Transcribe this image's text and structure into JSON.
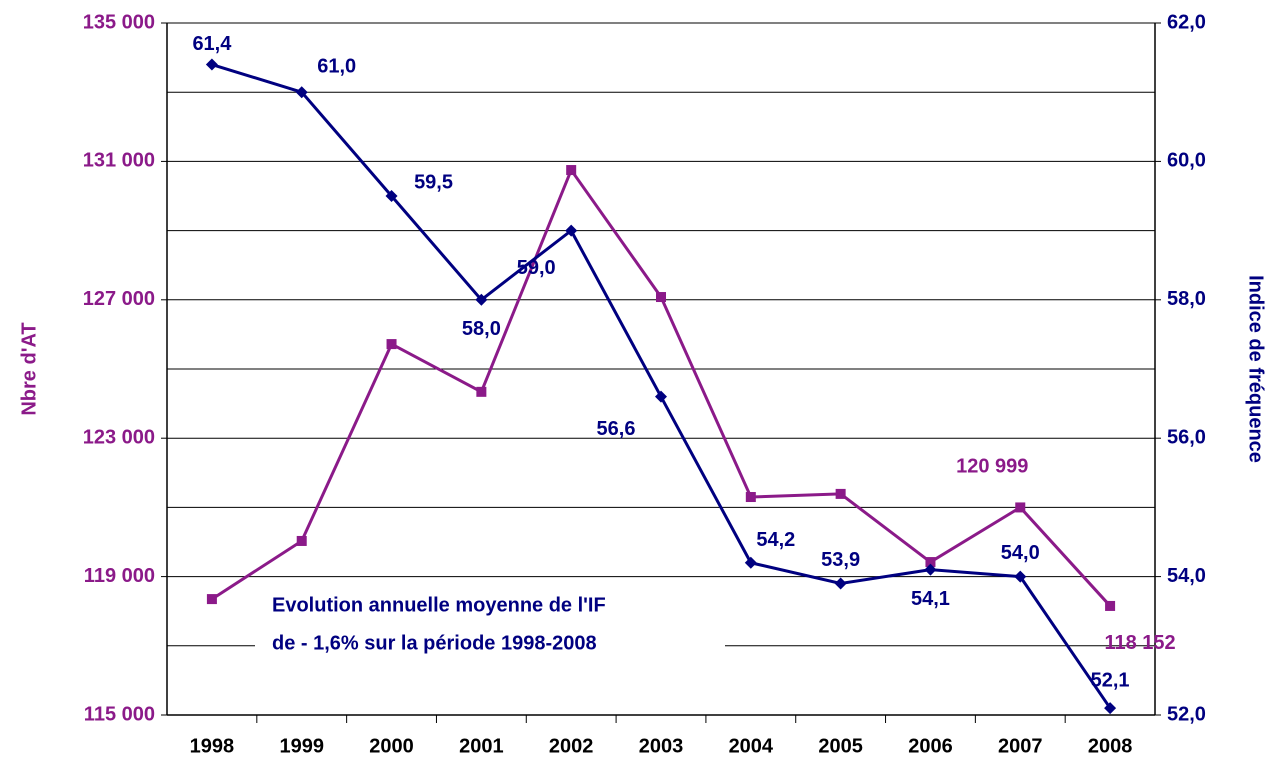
{
  "chart_data": {
    "type": "line",
    "y_label": "Nbre d'AT",
    "y2_label": "Indice de fréquence",
    "annotation": [
      "Evolution annuelle moyenne de l'IF",
      "de - 1,6% sur la période 1998-2008"
    ],
    "categories": [
      "1998",
      "1999",
      "2000",
      "2001",
      "2002",
      "2003",
      "2004",
      "2005",
      "2006",
      "2007",
      "2008"
    ],
    "series": [
      {
        "name": "Nbre d'AT",
        "color": "#8b1a89",
        "axis": "y",
        "values": [
          118350,
          120030,
          125720,
          124340,
          130750,
          127080,
          121300,
          121390,
          119420,
          120999,
          118152
        ],
        "value_labels": [
          null,
          null,
          null,
          null,
          null,
          null,
          null,
          null,
          null,
          "120 999",
          "118 152"
        ]
      },
      {
        "name": "Indice de fréquence",
        "color": "#000080",
        "axis": "y2",
        "values": [
          61.4,
          61.0,
          59.5,
          58.0,
          59.0,
          56.6,
          54.2,
          53.9,
          54.1,
          54.0,
          52.1
        ],
        "value_labels": [
          "61,4",
          "61,0",
          "59,5",
          "58,0",
          "59,0",
          "56,6",
          "54,2",
          "53,9",
          "54,1",
          "54,0",
          "52,1"
        ]
      }
    ],
    "ylim": [
      115000,
      135000
    ],
    "yticks": [
      {
        "value": 115000,
        "label": "115 000"
      },
      {
        "value": 119000,
        "label": "119 000"
      },
      {
        "value": 123000,
        "label": "123 000"
      },
      {
        "value": 127000,
        "label": "127 000"
      },
      {
        "value": 131000,
        "label": "131 000"
      },
      {
        "value": 135000,
        "label": "135 000"
      }
    ],
    "y_minor_ticks": [
      117000,
      121000,
      125000,
      129000,
      133000
    ],
    "y2lim": [
      52,
      62
    ],
    "y2ticks": [
      {
        "value": 52,
        "label": "52,0"
      },
      {
        "value": 54,
        "label": "54,0"
      },
      {
        "value": 56,
        "label": "56,0"
      },
      {
        "value": 58,
        "label": "58,0"
      },
      {
        "value": 60,
        "label": "60,0"
      },
      {
        "value": 62,
        "label": "62,0"
      }
    ],
    "grid": true
  }
}
